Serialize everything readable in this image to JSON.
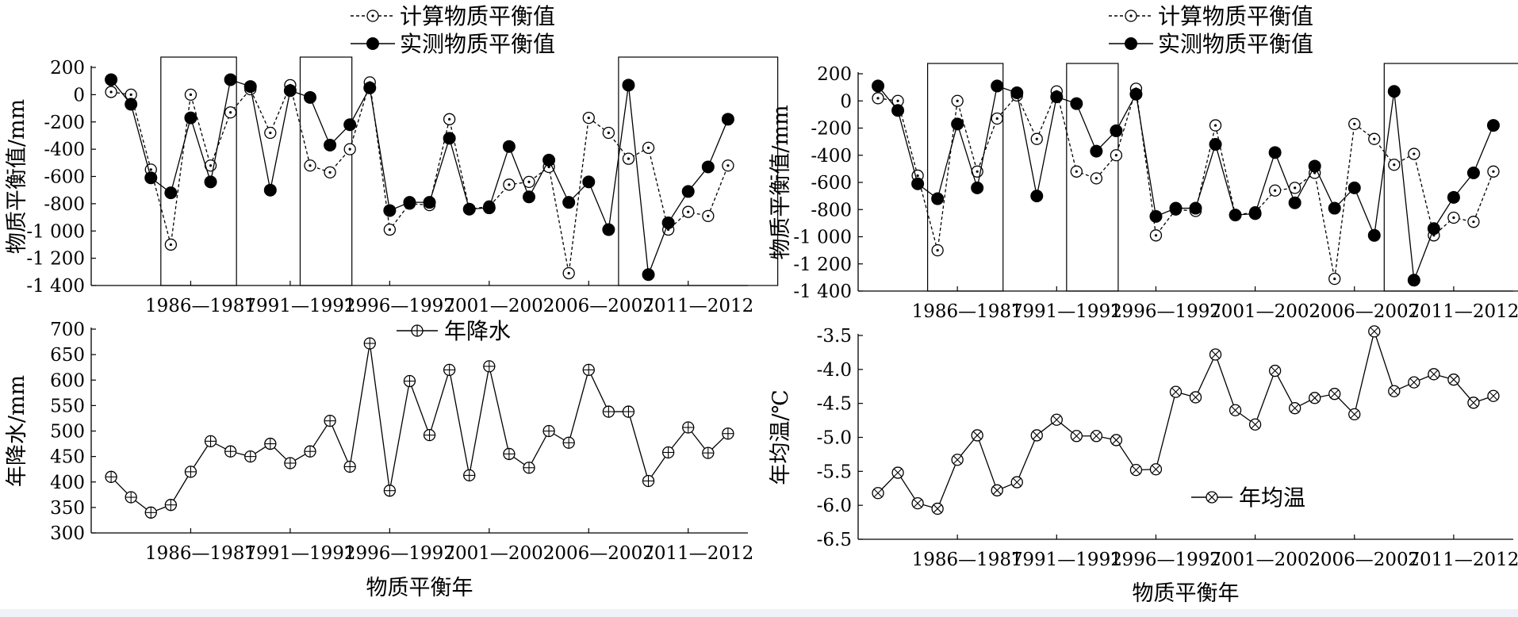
{
  "chart_data": [
    {
      "id": "mb-left",
      "type": "line",
      "ylabel": "物质平衡值/mm",
      "ylim": [
        -1400,
        200
      ],
      "yticks": [
        200,
        0,
        -200,
        -400,
        -600,
        -800,
        -1000,
        -1200,
        -1400
      ],
      "ytick_labels": [
        "200",
        "0",
        "-200",
        "-400",
        "-600",
        "-800",
        "-1 000",
        "-1 200",
        "-1 400"
      ],
      "x_labels": [
        "1986—1987",
        "1991—1992",
        "1996—1997",
        "2001—2002",
        "2006—2007",
        "2011—2012"
      ],
      "boxes": [
        [
          2.5,
          6.3
        ],
        [
          9.5,
          12.1
        ],
        [
          25.5,
          33.5
        ]
      ],
      "series": [
        {
          "name": "计算物质平衡值",
          "style": "open-dashed",
          "values": [
            20,
            0,
            -550,
            -1100,
            0,
            -520,
            -130,
            40,
            -280,
            70,
            -520,
            -570,
            -400,
            90,
            -990,
            -800,
            -810,
            -180,
            -840,
            -820,
            -660,
            -640,
            -530,
            -1310,
            -170,
            -280,
            -470,
            -390,
            -990,
            -860,
            -890,
            -520
          ]
        },
        {
          "name": "实测物质平衡值",
          "style": "filled-solid",
          "values": [
            110,
            -70,
            -610,
            -720,
            -170,
            -640,
            110,
            60,
            -700,
            30,
            -20,
            -370,
            -220,
            50,
            -850,
            -790,
            -790,
            -320,
            -840,
            -830,
            -380,
            -750,
            -480,
            -790,
            -640,
            -990,
            70,
            -1320,
            -940,
            -710,
            -530,
            -180
          ]
        }
      ]
    },
    {
      "id": "mb-right",
      "type": "line",
      "ylabel": "物质平衡值/mm",
      "ylim": [
        -1400,
        200
      ],
      "yticks": [
        200,
        0,
        -200,
        -400,
        -600,
        -800,
        -1000,
        -1200,
        -1400
      ],
      "ytick_labels": [
        "200",
        "0",
        "-200",
        "-400",
        "-600",
        "-800",
        "-1 000",
        "-1 200",
        "-1 400"
      ],
      "x_labels": [
        "1986—1987",
        "1991—1992",
        "1996—1997",
        "2001—2002",
        "2006—2007",
        "2011—2012"
      ],
      "boxes": [
        [
          2.5,
          6.3
        ],
        [
          9.5,
          12.1
        ],
        [
          25.5,
          33.5
        ]
      ],
      "series": [
        {
          "name": "计算物质平衡值",
          "style": "open-dashed",
          "values": [
            20,
            0,
            -550,
            -1100,
            0,
            -520,
            -130,
            40,
            -280,
            70,
            -520,
            -570,
            -400,
            90,
            -990,
            -800,
            -810,
            -180,
            -840,
            -820,
            -660,
            -640,
            -530,
            -1310,
            -170,
            -280,
            -470,
            -390,
            -990,
            -860,
            -890,
            -520
          ]
        },
        {
          "name": "实测物质平衡值",
          "style": "filled-solid",
          "values": [
            110,
            -70,
            -610,
            -720,
            -170,
            -640,
            110,
            60,
            -700,
            30,
            -20,
            -370,
            -220,
            50,
            -850,
            -790,
            -790,
            -320,
            -840,
            -830,
            -380,
            -750,
            -480,
            -790,
            -640,
            -990,
            70,
            -1320,
            -940,
            -710,
            -530,
            -180
          ]
        }
      ]
    },
    {
      "id": "precip",
      "type": "line",
      "ylabel": "年降水/mm",
      "xlabel": "物质平衡年",
      "ylim": [
        300,
        700
      ],
      "yticks": [
        700,
        650,
        600,
        550,
        500,
        450,
        400,
        350,
        300
      ],
      "ytick_labels": [
        "700",
        "650",
        "600",
        "550",
        "500",
        "450",
        "400",
        "350",
        "300"
      ],
      "x_labels": [
        "1986—1987",
        "1991—1992",
        "1996—1997",
        "2001—2002",
        "2006—2007",
        "2011—2012"
      ],
      "series": [
        {
          "name": "年降水",
          "style": "circle-plus",
          "values": [
            410,
            370,
            340,
            355,
            420,
            480,
            460,
            450,
            475,
            437,
            460,
            520,
            430,
            672,
            383,
            598,
            492,
            620,
            413,
            627,
            455,
            428,
            500,
            477,
            620,
            538,
            538,
            402,
            458,
            507,
            457,
            495
          ]
        }
      ]
    },
    {
      "id": "temp",
      "type": "line",
      "ylabel": "年均温/℃",
      "xlabel": "物质平衡年",
      "ylim": [
        -6.5,
        -3.5
      ],
      "yticks": [
        -3.5,
        -4.0,
        -4.5,
        -5.0,
        -5.5,
        -6.0,
        -6.5
      ],
      "ytick_labels": [
        "-3.5",
        "-4.0",
        "-4.5",
        "-5.0",
        "-5.5",
        "-6.0",
        "-6.5"
      ],
      "x_labels": [
        "1986—1987",
        "1991—1992",
        "1996—1997",
        "2001—2002",
        "2006—2007",
        "2011—2012"
      ],
      "series": [
        {
          "name": "年均温",
          "style": "circle-x",
          "values": [
            -5.82,
            -5.52,
            -5.97,
            -6.05,
            -5.33,
            -4.97,
            -5.78,
            -5.66,
            -4.97,
            -4.74,
            -4.98,
            -4.98,
            -5.04,
            -5.48,
            -5.47,
            -4.33,
            -4.41,
            -3.78,
            -4.6,
            -4.81,
            -4.02,
            -4.57,
            -4.42,
            -4.36,
            -4.66,
            -3.44,
            -4.32,
            -4.19,
            -4.07,
            -4.15,
            -4.49,
            -4.39
          ]
        }
      ]
    }
  ]
}
